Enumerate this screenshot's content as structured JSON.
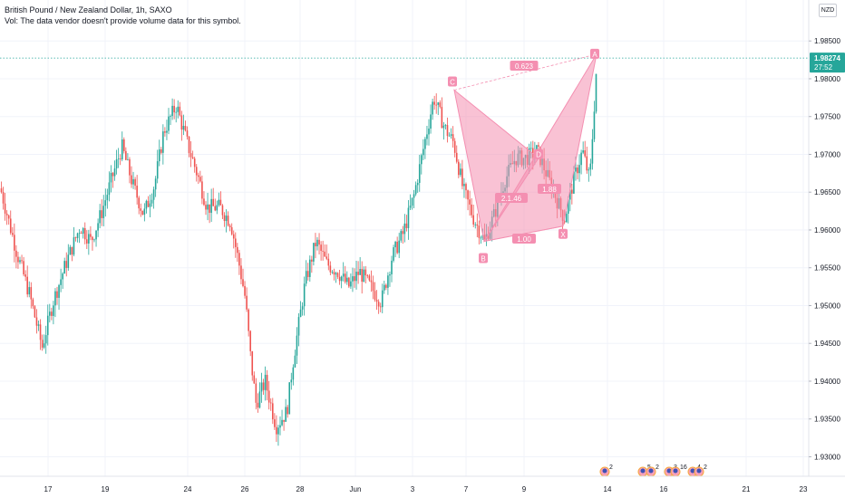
{
  "header": {
    "symbol_line": "British Pound / New Zealand Dollar, 1h, SAXO",
    "vol_line": "Vol: The data vendor doesn't provide volume data for this symbol."
  },
  "currency_button": "NZD",
  "colors": {
    "up": "#26a69a",
    "down": "#ef5350",
    "pattern": "#f48fb1",
    "last_price": "#26a69a"
  },
  "last_price": {
    "value": "1.98274",
    "countdown": "27:52"
  },
  "chart_data": {
    "type": "candlestick",
    "title": "British Pound / New Zealand Dollar, 1h, SAXO",
    "y_ticks": [
      1.93,
      1.935,
      1.94,
      1.945,
      1.95,
      1.955,
      1.96,
      1.965,
      1.97,
      1.975,
      1.98,
      1.985
    ],
    "y_tick_labels": [
      "1.93000",
      "1.93500",
      "1.94000",
      "1.94500",
      "1.95000",
      "1.95500",
      "1.96000",
      "1.96500",
      "1.97000",
      "1.97500",
      "1.98000",
      "1.98500"
    ],
    "ylim": [
      1.9285,
      1.9885
    ],
    "x_ticks": [
      "17",
      "19",
      "24",
      "26",
      "28",
      "Jun",
      "3",
      "7",
      "9",
      "14",
      "16",
      "21",
      "23"
    ],
    "grid": true,
    "series_path": [
      [
        0,
        1.9655
      ],
      [
        18,
        1.957
      ],
      [
        32,
        1.9515
      ],
      [
        46,
        1.9445
      ],
      [
        58,
        1.9505
      ],
      [
        72,
        1.9555
      ],
      [
        88,
        1.9605
      ],
      [
        100,
        1.9585
      ],
      [
        112,
        1.9625
      ],
      [
        122,
        1.9665
      ],
      [
        134,
        1.971
      ],
      [
        146,
        1.966
      ],
      [
        158,
        1.962
      ],
      [
        170,
        1.966
      ],
      [
        180,
        1.973
      ],
      [
        194,
        1.9765
      ],
      [
        206,
        1.9715
      ],
      [
        218,
        1.967
      ],
      [
        228,
        1.963
      ],
      [
        242,
        1.963
      ],
      [
        254,
        1.961
      ],
      [
        264,
        1.955
      ],
      [
        270,
        1.951
      ],
      [
        276,
        1.943
      ],
      [
        282,
        1.937
      ],
      [
        292,
        1.94
      ],
      [
        304,
        1.934
      ],
      [
        316,
        1.936
      ],
      [
        322,
        1.942
      ],
      [
        336,
        1.953
      ],
      [
        348,
        1.9585
      ],
      [
        360,
        1.9555
      ],
      [
        372,
        1.9545
      ],
      [
        384,
        1.9525
      ],
      [
        396,
        1.9545
      ],
      [
        408,
        1.9525
      ],
      [
        420,
        1.9505
      ],
      [
        432,
        1.9565
      ],
      [
        444,
        1.9595
      ],
      [
        456,
        1.9645
      ],
      [
        466,
        1.9705
      ],
      [
        478,
        1.9775
      ],
      [
        490,
        1.9735
      ],
      [
        500,
        1.9715
      ],
      [
        510,
        1.9655
      ],
      [
        522,
        1.9615
      ],
      [
        534,
        1.9585
      ],
      [
        546,
        1.9625
      ],
      [
        556,
        1.9665
      ],
      [
        568,
        1.9695
      ],
      [
        580,
        1.9695
      ],
      [
        592,
        1.9705
      ],
      [
        602,
        1.9675
      ],
      [
        612,
        1.9645
      ],
      [
        622,
        1.9615
      ],
      [
        632,
        1.9665
      ],
      [
        642,
        1.9705
      ],
      [
        650,
        1.9665
      ],
      [
        654,
        1.9745
      ],
      [
        658,
        1.98274
      ]
    ],
    "pattern": {
      "points": [
        {
          "label": "X",
          "x_pos": "between 9 and 14",
          "y": 1.9605
        },
        {
          "label": "A",
          "x_pos": "just before 14",
          "y": 1.98325
        },
        {
          "label": "B",
          "x_pos": "between 7 and 9",
          "y": 1.9585
        },
        {
          "label": "C",
          "x_pos": "between 3 and 7",
          "y": 1.9785
        },
        {
          "label": "D",
          "x_pos": "between 9 and 14",
          "y": 1.9695
        }
      ],
      "ratios": [
        "0.623",
        "2.1.46",
        "1.88",
        "1.00"
      ]
    }
  },
  "events": [
    {
      "badge": "2"
    },
    {
      "badge": "5"
    },
    {
      "badge": "2"
    },
    {
      "badge": "3"
    },
    {
      "badge": "16"
    },
    {
      "badge": "4"
    },
    {
      "badge": "2"
    }
  ]
}
